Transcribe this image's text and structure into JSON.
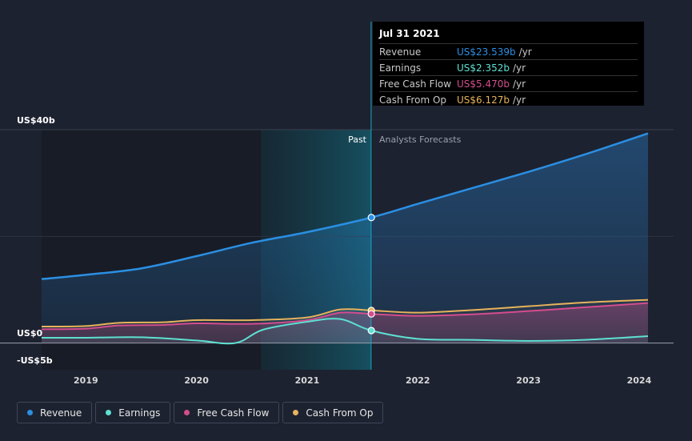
{
  "chart_data": {
    "type": "area",
    "x_axis": {
      "ticks": [
        "2019",
        "2020",
        "2021",
        "2022",
        "2023",
        "2024"
      ]
    },
    "y_axis": {
      "label_top": "US$40b",
      "label_zero": "US$0",
      "label_bottom": "-US$5b",
      "ylim": [
        -5,
        40
      ]
    },
    "regions": {
      "past_label": "Past",
      "forecast_label": "Analysts Forecasts",
      "split_date": "2021-07-31",
      "highlight_start": "2020-08-01"
    },
    "series": [
      {
        "name": "Revenue",
        "color": "#2b8fe3",
        "points": [
          [
            2018.6,
            12.0
          ],
          [
            2019.0,
            12.8
          ],
          [
            2019.5,
            14.0
          ],
          [
            2020.0,
            16.3
          ],
          [
            2020.5,
            18.8
          ],
          [
            2021.0,
            20.8
          ],
          [
            2021.58,
            23.539
          ],
          [
            2022.0,
            26.1
          ],
          [
            2022.5,
            29.1
          ],
          [
            2023.0,
            32.1
          ],
          [
            2023.5,
            35.3
          ],
          [
            2024.08,
            39.3
          ]
        ]
      },
      {
        "name": "Earnings",
        "color": "#5ee0d2",
        "points": [
          [
            2018.6,
            1.0
          ],
          [
            2019.0,
            1.0
          ],
          [
            2019.5,
            1.1
          ],
          [
            2020.0,
            0.5
          ],
          [
            2020.35,
            0.0
          ],
          [
            2020.6,
            2.5
          ],
          [
            2021.0,
            4.0
          ],
          [
            2021.3,
            4.5
          ],
          [
            2021.58,
            2.352
          ],
          [
            2022.0,
            0.8
          ],
          [
            2022.5,
            0.6
          ],
          [
            2023.0,
            0.4
          ],
          [
            2023.5,
            0.6
          ],
          [
            2024.08,
            1.3
          ]
        ]
      },
      {
        "name": "Free Cash Flow",
        "color": "#d34d8e",
        "points": [
          [
            2018.6,
            2.6
          ],
          [
            2019.0,
            2.7
          ],
          [
            2019.3,
            3.3
          ],
          [
            2019.7,
            3.4
          ],
          [
            2020.0,
            3.7
          ],
          [
            2020.5,
            3.6
          ],
          [
            2021.0,
            4.3
          ],
          [
            2021.3,
            5.7
          ],
          [
            2021.58,
            5.47
          ],
          [
            2022.0,
            5.1
          ],
          [
            2022.5,
            5.4
          ],
          [
            2023.0,
            6.0
          ],
          [
            2023.5,
            6.7
          ],
          [
            2024.08,
            7.5
          ]
        ]
      },
      {
        "name": "Cash From Op",
        "color": "#e7b35c",
        "points": [
          [
            2018.6,
            3.1
          ],
          [
            2019.0,
            3.2
          ],
          [
            2019.3,
            3.8
          ],
          [
            2019.7,
            3.9
          ],
          [
            2020.0,
            4.3
          ],
          [
            2020.5,
            4.3
          ],
          [
            2021.0,
            4.8
          ],
          [
            2021.3,
            6.3
          ],
          [
            2021.58,
            6.127
          ],
          [
            2022.0,
            5.7
          ],
          [
            2022.5,
            6.2
          ],
          [
            2023.0,
            6.9
          ],
          [
            2023.5,
            7.6
          ],
          [
            2024.08,
            8.1
          ]
        ]
      }
    ]
  },
  "tooltip": {
    "date": "Jul 31 2021",
    "rows": [
      {
        "label": "Revenue",
        "value": "US$23.539b",
        "unit": "/yr",
        "color": "#2b8fe3"
      },
      {
        "label": "Earnings",
        "value": "US$2.352b",
        "unit": "/yr",
        "color": "#5ee0d2"
      },
      {
        "label": "Free Cash Flow",
        "value": "US$5.470b",
        "unit": "/yr",
        "color": "#d34d8e"
      },
      {
        "label": "Cash From Op",
        "value": "US$6.127b",
        "unit": "/yr",
        "color": "#e7b35c"
      }
    ]
  },
  "legend": [
    {
      "label": "Revenue",
      "color": "#2b8fe3"
    },
    {
      "label": "Earnings",
      "color": "#5ee0d2"
    },
    {
      "label": "Free Cash Flow",
      "color": "#d34d8e"
    },
    {
      "label": "Cash From Op",
      "color": "#e7b35c"
    }
  ]
}
